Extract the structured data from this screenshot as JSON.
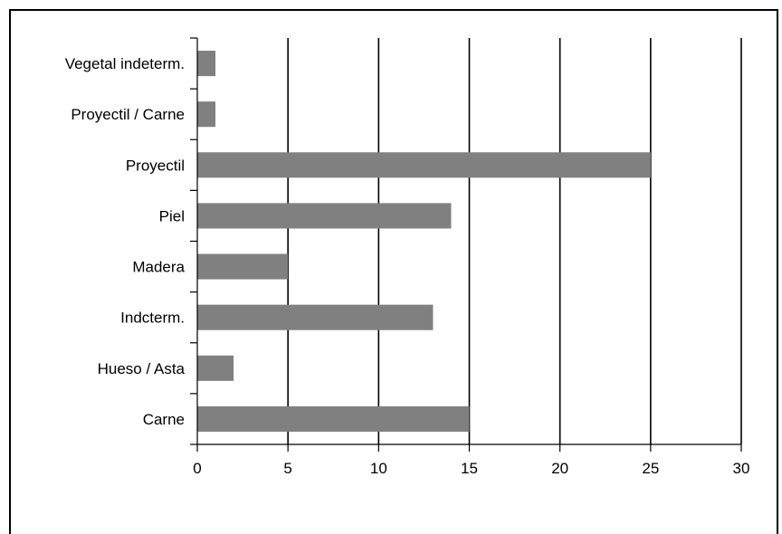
{
  "chart_data": {
    "type": "bar",
    "orientation": "horizontal",
    "categories": [
      "Vegetal indeterm.",
      "Proyectil / Carne",
      "Proyectil",
      "Piel",
      "Madera",
      "Indcterm.",
      "Hueso / Asta",
      "Carne"
    ],
    "values": [
      1,
      1,
      25,
      14,
      5,
      13,
      2,
      15
    ],
    "xticks": [
      0,
      5,
      10,
      15,
      20,
      25,
      30
    ],
    "xlim": [
      0,
      30
    ],
    "grid": "vertical",
    "legend": "none",
    "bar_color": "#808080",
    "title": "",
    "xlabel": "",
    "ylabel": ""
  }
}
